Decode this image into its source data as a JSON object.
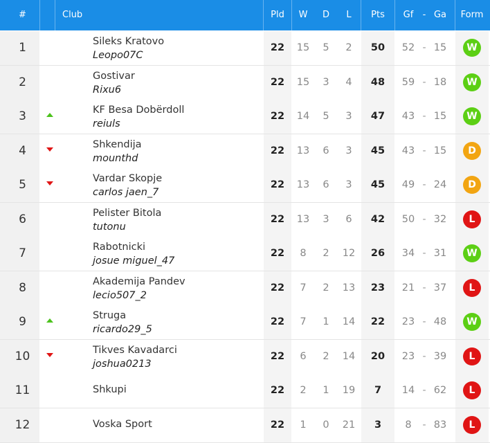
{
  "header": {
    "rank": "#",
    "club": "Club",
    "pld": "Pld",
    "w": "W",
    "d": "D",
    "l": "L",
    "pts": "Pts",
    "gf": "Gf",
    "dash": "-",
    "ga": "Ga",
    "form": "Form"
  },
  "colors": {
    "header_bg": "#1a8de6",
    "form_W": "#5ccf14",
    "form_D": "#f2a512",
    "form_L": "#e01515",
    "arrow_up": "#4cc21d",
    "arrow_down": "#e01515"
  },
  "rows": [
    {
      "rank": "1",
      "move": "none",
      "club": "Sileks Kratovo",
      "user": "Leopo07C",
      "pld": "22",
      "w": "15",
      "d": "5",
      "l": "2",
      "pts": "50",
      "gf": "52",
      "dash": "-",
      "ga": "15",
      "form": "W"
    },
    {
      "rank": "2",
      "move": "none",
      "club": "Gostivar",
      "user": "Rixu6",
      "pld": "22",
      "w": "15",
      "d": "3",
      "l": "4",
      "pts": "48",
      "gf": "59",
      "dash": "-",
      "ga": "18",
      "form": "W"
    },
    {
      "rank": "3",
      "move": "up",
      "club": "KF Besa Dobërdoll",
      "user": "reiuls",
      "pld": "22",
      "w": "14",
      "d": "5",
      "l": "3",
      "pts": "47",
      "gf": "43",
      "dash": "-",
      "ga": "15",
      "form": "W"
    },
    {
      "rank": "4",
      "move": "down",
      "club": "Shkendija",
      "user": "mounthd",
      "pld": "22",
      "w": "13",
      "d": "6",
      "l": "3",
      "pts": "45",
      "gf": "43",
      "dash": "-",
      "ga": "15",
      "form": "D"
    },
    {
      "rank": "5",
      "move": "down",
      "club": "Vardar Skopje",
      "user": "carlos jaen_7",
      "pld": "22",
      "w": "13",
      "d": "6",
      "l": "3",
      "pts": "45",
      "gf": "49",
      "dash": "-",
      "ga": "24",
      "form": "D"
    },
    {
      "rank": "6",
      "move": "none",
      "club": "Pelister Bitola",
      "user": "tutonu",
      "pld": "22",
      "w": "13",
      "d": "3",
      "l": "6",
      "pts": "42",
      "gf": "50",
      "dash": "-",
      "ga": "32",
      "form": "L"
    },
    {
      "rank": "7",
      "move": "none",
      "club": "Rabotnicki",
      "user": "josue miguel_47",
      "pld": "22",
      "w": "8",
      "d": "2",
      "l": "12",
      "pts": "26",
      "gf": "34",
      "dash": "-",
      "ga": "31",
      "form": "W"
    },
    {
      "rank": "8",
      "move": "none",
      "club": "Akademija Pandev",
      "user": "lecio507_2",
      "pld": "22",
      "w": "7",
      "d": "2",
      "l": "13",
      "pts": "23",
      "gf": "21",
      "dash": "-",
      "ga": "37",
      "form": "L"
    },
    {
      "rank": "9",
      "move": "up",
      "club": "Struga",
      "user": "ricardo29_5",
      "pld": "22",
      "w": "7",
      "d": "1",
      "l": "14",
      "pts": "22",
      "gf": "23",
      "dash": "-",
      "ga": "48",
      "form": "W"
    },
    {
      "rank": "10",
      "move": "down",
      "club": "Tikves Kavadarci",
      "user": "joshua0213",
      "pld": "22",
      "w": "6",
      "d": "2",
      "l": "14",
      "pts": "20",
      "gf": "23",
      "dash": "-",
      "ga": "39",
      "form": "L"
    },
    {
      "rank": "11",
      "move": "none",
      "club": "Shkupi",
      "user": "",
      "pld": "22",
      "w": "2",
      "d": "1",
      "l": "19",
      "pts": "7",
      "gf": "14",
      "dash": "-",
      "ga": "62",
      "form": "L"
    },
    {
      "rank": "12",
      "move": "none",
      "club": "Voska Sport",
      "user": "",
      "pld": "22",
      "w": "1",
      "d": "0",
      "l": "21",
      "pts": "3",
      "gf": "8",
      "dash": "-",
      "ga": "83",
      "form": "L"
    }
  ]
}
